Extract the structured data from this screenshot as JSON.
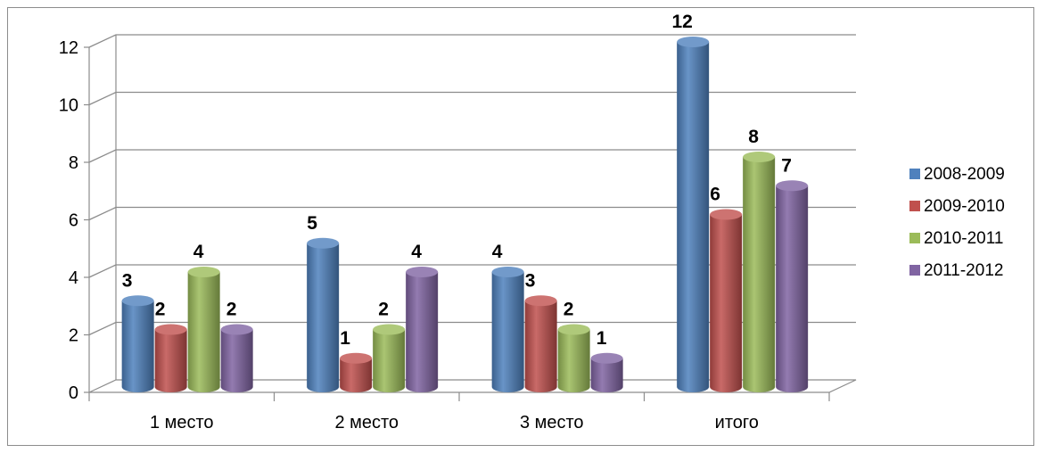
{
  "chart_data": {
    "type": "bar",
    "title": "",
    "xlabel": "",
    "ylabel": "",
    "ylim": [
      0,
      12
    ],
    "yticks": [
      0,
      2,
      4,
      6,
      8,
      10,
      12
    ],
    "grid": true,
    "legend": "right",
    "categories": [
      "1 место",
      "2 место",
      "3 место",
      "итого"
    ],
    "series": [
      {
        "name": "2008-2009",
        "color": "#4f81bd",
        "values": [
          3,
          5,
          4,
          12
        ]
      },
      {
        "name": "2009-2010",
        "color": "#c0504d",
        "values": [
          2,
          1,
          3,
          6
        ]
      },
      {
        "name": "2010-2011",
        "color": "#9bbb59",
        "values": [
          4,
          2,
          2,
          8
        ]
      },
      {
        "name": "2011-2012",
        "color": "#8064a2",
        "values": [
          2,
          4,
          1,
          7
        ]
      }
    ]
  }
}
